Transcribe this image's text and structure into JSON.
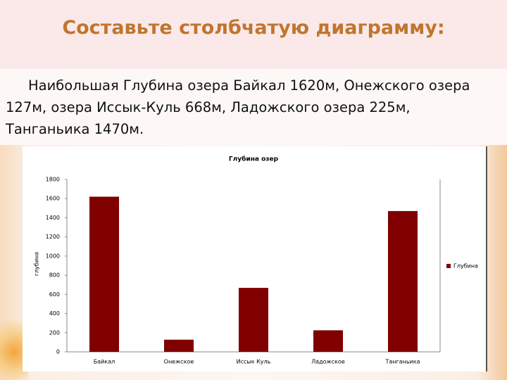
{
  "heading": "Составьте столбчатую диаграмму:",
  "text": "Наибольшая Глубина озера Байкал 1620м,  Онежского озера 127м, озера Иссык-Куль 668м, Ладожского озера 225м, Танганьика 1470м.",
  "chart_data": {
    "type": "bar",
    "title": "Глубина озер",
    "y_label": "глубина",
    "categories": [
      "Байкал",
      "Онежское",
      "Иссык Куль",
      "Ладожское",
      "Танганьика"
    ],
    "series": [
      {
        "name": "Глубина",
        "color": "#800000",
        "values": [
          1620,
          127,
          668,
          225,
          1470
        ]
      }
    ],
    "ylim": [
      0,
      1800
    ],
    "yticks": [
      0,
      200,
      400,
      600,
      800,
      1000,
      1200,
      1400,
      1600,
      1800
    ],
    "legend": "right"
  }
}
